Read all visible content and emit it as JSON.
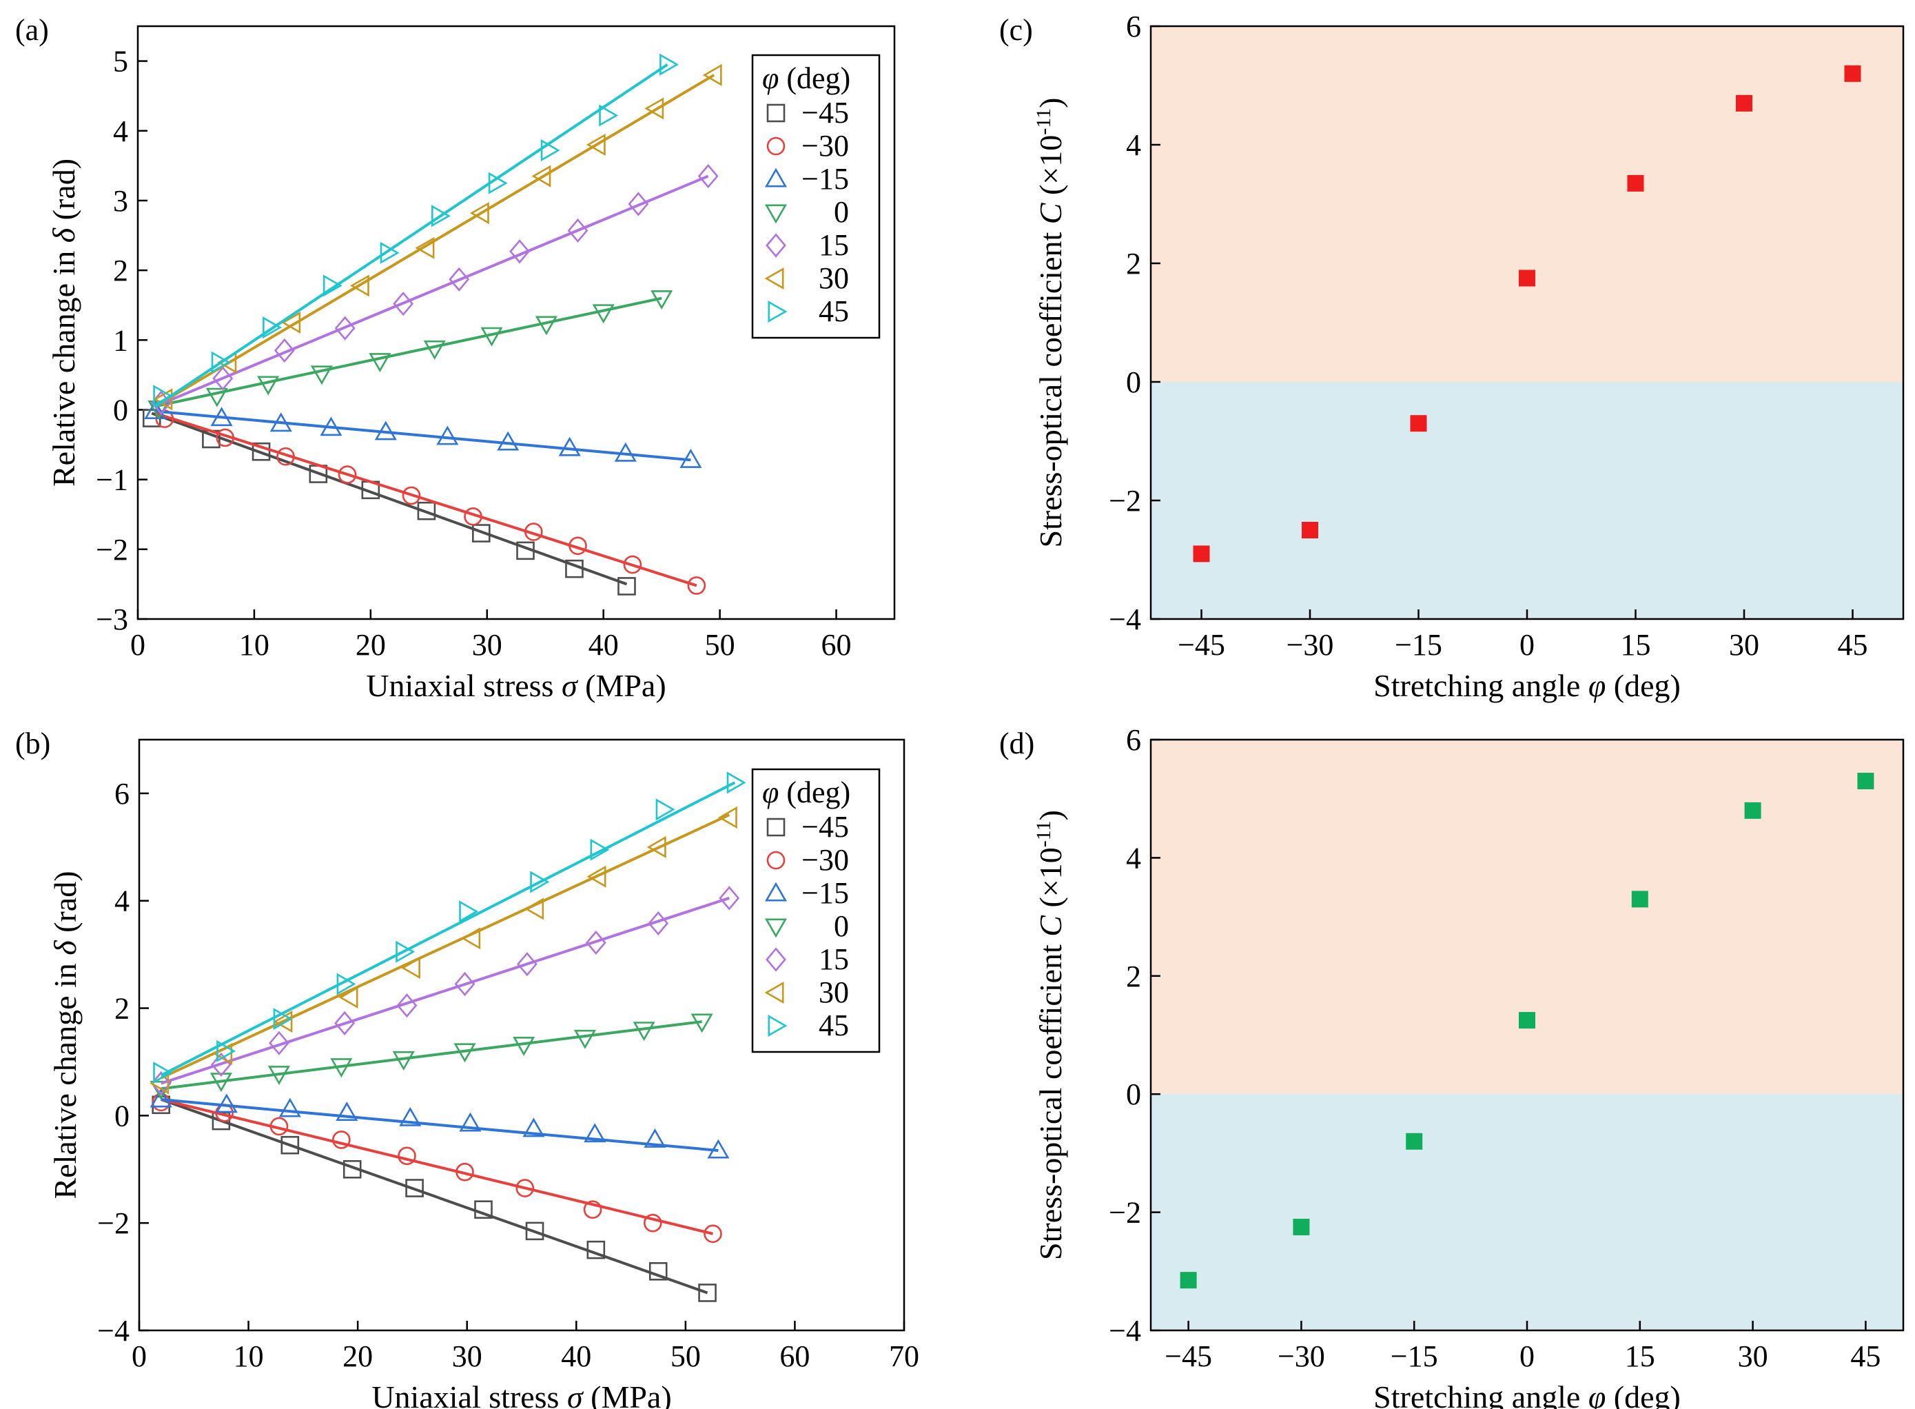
{
  "figure": {
    "panels": [
      "(a)",
      "(b)",
      "(c)",
      "(d)"
    ]
  },
  "colors": {
    "-45": "#4d4d4d",
    "-30": "#e8403c",
    "-15": "#2f74d8",
    "0": "#3aa860",
    "15": "#b073e0",
    "30": "#c8981c",
    "45": "#1fc6cf",
    "c_marker": "#ee1c1c",
    "d_marker": "#10ad5c",
    "positive_region": "#fbe5d6",
    "negative_region": "#d7ebf1"
  },
  "chart_data": [
    {
      "id": "a",
      "type": "scatter",
      "panel_label": "(a)",
      "xlabel_prefix": "Uniaxial stress ",
      "xlabel_symbol": "σ",
      "xlabel_suffix": " (MPa)",
      "ylabel_prefix": "Relative change in ",
      "ylabel_symbol": "δ",
      "ylabel_suffix": " (rad)",
      "xlim": [
        0,
        65
      ],
      "ylim": [
        -3,
        5.5
      ],
      "xticks": [
        0,
        10,
        20,
        30,
        40,
        50,
        60
      ],
      "yticks": [
        -3,
        -2,
        -1,
        0,
        1,
        2,
        3,
        4,
        5
      ],
      "legend_title_symbol": "φ",
      "legend_title_suffix": " (deg)",
      "series": [
        {
          "name": "−45",
          "key": "-45",
          "marker": "square",
          "fit": [
            [
              1.2,
              -0.05
            ],
            [
              42,
              -2.5
            ]
          ],
          "x": [
            1.2,
            6.3,
            10.6,
            15.5,
            20.0,
            24.8,
            29.5,
            33.3,
            37.5,
            42.0
          ],
          "y": [
            -0.12,
            -0.42,
            -0.6,
            -0.92,
            -1.15,
            -1.45,
            -1.77,
            -2.02,
            -2.28,
            -2.53
          ]
        },
        {
          "name": "−30",
          "key": "-30",
          "marker": "circle",
          "fit": [
            [
              1.5,
              -0.05
            ],
            [
              48,
              -2.52
            ]
          ],
          "x": [
            2.3,
            7.5,
            12.7,
            18.0,
            23.5,
            28.8,
            34.0,
            37.8,
            42.5,
            48.0
          ],
          "y": [
            -0.13,
            -0.4,
            -0.67,
            -0.93,
            -1.23,
            -1.53,
            -1.75,
            -1.95,
            -2.22,
            -2.52
          ]
        },
        {
          "name": "−15",
          "key": "-15",
          "marker": "triangle-up",
          "fit": [
            [
              1.5,
              -0.02
            ],
            [
              47.5,
              -0.72
            ]
          ],
          "x": [
            1.5,
            7.2,
            12.3,
            16.6,
            21.3,
            26.6,
            31.8,
            37.1,
            41.9,
            47.5
          ],
          "y": [
            -0.02,
            -0.12,
            -0.2,
            -0.26,
            -0.32,
            -0.39,
            -0.47,
            -0.55,
            -0.63,
            -0.72
          ]
        },
        {
          "name": "0",
          "key": "0",
          "marker": "triangle-down",
          "fit": [
            [
              1.5,
              0.05
            ],
            [
              45,
              1.6
            ]
          ],
          "x": [
            1.8,
            6.8,
            11.2,
            15.8,
            20.8,
            25.5,
            30.4,
            35.1,
            40.0,
            45.0
          ],
          "y": [
            0.02,
            0.2,
            0.37,
            0.52,
            0.7,
            0.88,
            1.07,
            1.23,
            1.4,
            1.6
          ]
        },
        {
          "name": "15",
          "key": "15",
          "marker": "diamond",
          "fit": [
            [
              1.5,
              0.05
            ],
            [
              49,
              3.35
            ]
          ],
          "x": [
            2.0,
            7.3,
            12.6,
            17.8,
            22.8,
            27.6,
            32.8,
            37.8,
            43.0,
            49.0
          ],
          "y": [
            0.1,
            0.45,
            0.85,
            1.17,
            1.52,
            1.87,
            2.27,
            2.57,
            2.95,
            3.35
          ]
        },
        {
          "name": "30",
          "key": "30",
          "marker": "triangle-left",
          "fit": [
            [
              1.5,
              0.05
            ],
            [
              49.5,
              4.8
            ]
          ],
          "x": [
            2.3,
            7.8,
            13.3,
            19.2,
            24.8,
            29.5,
            34.8,
            39.5,
            44.5,
            49.5
          ],
          "y": [
            0.15,
            0.68,
            1.25,
            1.78,
            2.32,
            2.82,
            3.35,
            3.8,
            4.32,
            4.8
          ]
        },
        {
          "name": "45",
          "key": "45",
          "marker": "triangle-right",
          "fit": [
            [
              1.5,
              0.05
            ],
            [
              45.5,
              4.95
            ]
          ],
          "x": [
            2.0,
            7.0,
            11.4,
            16.6,
            21.5,
            25.9,
            30.8,
            35.3,
            40.3,
            45.5
          ],
          "y": [
            0.2,
            0.68,
            1.18,
            1.78,
            2.25,
            2.78,
            3.25,
            3.72,
            4.22,
            4.95
          ]
        }
      ]
    },
    {
      "id": "b",
      "type": "scatter",
      "panel_label": "(b)",
      "xlabel_prefix": "Uniaxial stress ",
      "xlabel_symbol": "σ",
      "xlabel_suffix": " (MPa)",
      "ylabel_prefix": "Relative change in ",
      "ylabel_symbol": "δ",
      "ylabel_suffix": " (rad)",
      "xlim": [
        0,
        70
      ],
      "ylim": [
        -4,
        7
      ],
      "xticks": [
        0,
        10,
        20,
        30,
        40,
        50,
        60,
        70
      ],
      "yticks": [
        -4,
        -2,
        0,
        2,
        4,
        6
      ],
      "legend_title_symbol": "φ",
      "legend_title_suffix": " (deg)",
      "series": [
        {
          "name": "−45",
          "key": "-45",
          "marker": "square",
          "fit": [
            [
              2,
              0.3
            ],
            [
              52,
              -3.3
            ]
          ],
          "x": [
            2.0,
            7.5,
            13.8,
            19.5,
            25.2,
            31.5,
            36.2,
            41.8,
            47.5,
            52.0
          ],
          "y": [
            0.2,
            -0.1,
            -0.55,
            -1.0,
            -1.35,
            -1.75,
            -2.15,
            -2.5,
            -2.9,
            -3.3
          ]
        },
        {
          "name": "−30",
          "key": "-30",
          "marker": "circle",
          "fit": [
            [
              2,
              0.3
            ],
            [
              52.5,
              -2.2
            ]
          ],
          "x": [
            2.0,
            7.8,
            12.8,
            18.5,
            24.5,
            29.8,
            35.3,
            41.5,
            47.0,
            52.5
          ],
          "y": [
            0.25,
            0.05,
            -0.2,
            -0.45,
            -0.75,
            -1.05,
            -1.35,
            -1.75,
            -2.0,
            -2.2
          ]
        },
        {
          "name": "−15",
          "key": "-15",
          "marker": "triangle-up",
          "fit": [
            [
              2,
              0.3
            ],
            [
              53,
              -0.65
            ]
          ],
          "x": [
            2.0,
            8.0,
            13.8,
            19.0,
            24.8,
            30.3,
            36.1,
            41.7,
            47.2,
            53.0
          ],
          "y": [
            0.3,
            0.2,
            0.12,
            0.05,
            -0.05,
            -0.15,
            -0.25,
            -0.35,
            -0.45,
            -0.65
          ]
        },
        {
          "name": "0",
          "key": "0",
          "marker": "triangle-down",
          "fit": [
            [
              2,
              0.5
            ],
            [
              51.5,
              1.75
            ]
          ],
          "x": [
            2.0,
            7.5,
            12.8,
            18.5,
            24.2,
            29.8,
            35.2,
            40.8,
            46.2,
            51.5
          ],
          "y": [
            0.5,
            0.65,
            0.78,
            0.92,
            1.05,
            1.2,
            1.32,
            1.45,
            1.6,
            1.75
          ]
        },
        {
          "name": "15",
          "key": "15",
          "marker": "diamond",
          "fit": [
            [
              2,
              0.6
            ],
            [
              54,
              4.05
            ]
          ],
          "x": [
            2.0,
            7.5,
            12.8,
            18.8,
            24.5,
            29.8,
            35.5,
            41.8,
            47.5,
            54.0
          ],
          "y": [
            0.6,
            0.95,
            1.35,
            1.72,
            2.05,
            2.45,
            2.82,
            3.22,
            3.58,
            4.05
          ]
        },
        {
          "name": "30",
          "key": "30",
          "marker": "triangle-left",
          "fit": [
            [
              2,
              0.7
            ],
            [
              54,
              5.6
            ]
          ],
          "x": [
            2.0,
            7.8,
            13.3,
            19.3,
            25.0,
            30.5,
            36.3,
            42.0,
            47.5,
            54.0
          ],
          "y": [
            0.6,
            1.15,
            1.75,
            2.2,
            2.75,
            3.3,
            3.85,
            4.45,
            5.0,
            5.55
          ]
        },
        {
          "name": "45",
          "key": "45",
          "marker": "triangle-right",
          "fit": [
            [
              2,
              0.75
            ],
            [
              54.5,
              6.2
            ]
          ],
          "x": [
            2.0,
            7.8,
            13.0,
            18.8,
            24.2,
            30.0,
            36.5,
            42.0,
            48.0,
            54.5
          ],
          "y": [
            0.8,
            1.2,
            1.8,
            2.45,
            3.05,
            3.8,
            4.35,
            4.95,
            5.7,
            6.2
          ]
        }
      ]
    },
    {
      "id": "c",
      "type": "scatter",
      "panel_label": "(c)",
      "xlabel_prefix": "Stretching angle ",
      "xlabel_symbol": "φ",
      "xlabel_suffix": " (deg)",
      "ylabel_prefix": "Stress-optical coefficient ",
      "ylabel_symbol": "C",
      "ylabel_suffix": " (×10",
      "ylabel_exponent": "-11",
      "ylabel_close": ")",
      "xlim": [
        -52,
        52
      ],
      "ylim": [
        -4,
        6
      ],
      "xticks": [
        -45,
        -30,
        -15,
        0,
        15,
        30,
        45
      ],
      "xtick_labels": [
        "−45",
        "−30",
        "−15",
        "0",
        "15",
        "30",
        "45"
      ],
      "yticks": [
        -4,
        -2,
        0,
        2,
        4,
        6
      ],
      "x": [
        -45,
        -30,
        -15,
        0,
        15,
        30,
        45
      ],
      "y": [
        -2.9,
        -2.5,
        -0.7,
        1.75,
        3.35,
        4.7,
        5.2
      ]
    },
    {
      "id": "d",
      "type": "scatter",
      "panel_label": "(d)",
      "xlabel_prefix": "Stretching angle ",
      "xlabel_symbol": "φ",
      "xlabel_suffix": " (deg)",
      "ylabel_prefix": "Stress-optical coefficient ",
      "ylabel_symbol": "C",
      "ylabel_suffix": " (×10",
      "ylabel_exponent": "-11",
      "ylabel_close": ")",
      "xlim": [
        -50,
        50
      ],
      "ylim": [
        -4,
        6
      ],
      "xticks": [
        -45,
        -30,
        -15,
        0,
        15,
        30,
        45
      ],
      "xtick_labels": [
        "−45",
        "−30",
        "−15",
        "0",
        "15",
        "30",
        "45"
      ],
      "yticks": [
        -4,
        -2,
        0,
        2,
        4,
        6
      ],
      "x": [
        -45,
        -30,
        -15,
        0,
        15,
        30,
        45
      ],
      "y": [
        -3.15,
        -2.25,
        -0.8,
        1.25,
        3.3,
        4.8,
        5.3
      ]
    }
  ]
}
